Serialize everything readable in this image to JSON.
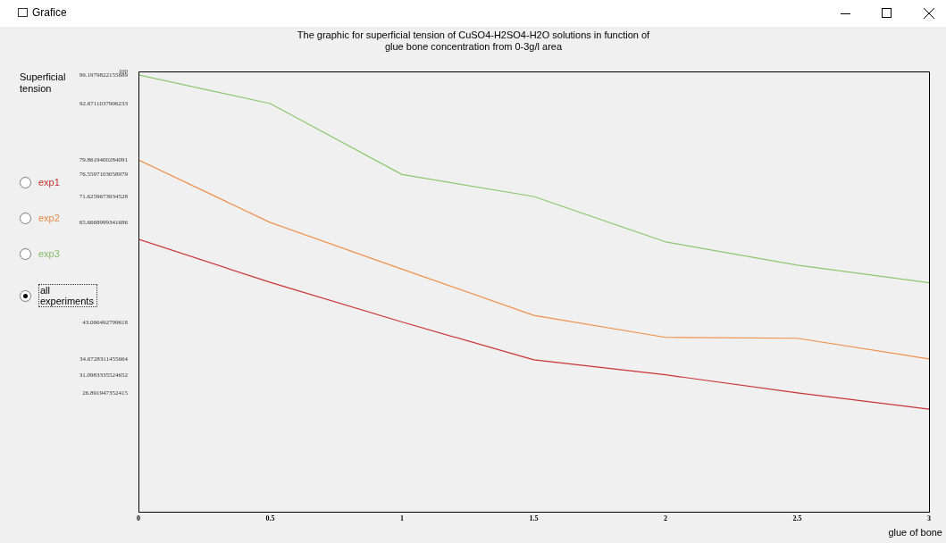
{
  "chart_data": {
    "type": "line",
    "title": "The graphic for superficial tension of CuSO4-H2SO4-H2O solutions in function of glue bone concentration from 0-3g/l area",
    "ylabel": "Superficial tension",
    "xlabel": "glue of bone",
    "annotations": [
      "Grafice",
      "all experiments"
    ],
    "x": [
      0,
      0.5,
      1,
      1.5,
      2,
      2.5,
      3
    ],
    "xlim": [
      0,
      3
    ],
    "xticks": [
      0,
      0.5,
      1,
      1.5,
      2,
      2.5,
      3
    ],
    "ylim": [
      0,
      100
    ],
    "yticks": [
      100,
      99.1979822155689,
      92.6711037906233,
      79.8619400284091,
      76.5597103058979,
      71.6259673934528,
      65.6668999341686,
      43.066492799618,
      34.6728311455664,
      31.0983335524652,
      26.891947352415
    ],
    "legend": "left",
    "marker": "none",
    "line_style": "solid",
    "series": [
      {
        "name": "exp1",
        "color": "#cc3333",
        "values": [
          61.9,
          52.1,
          43.1,
          34.5,
          31.1,
          27.0,
          23.3
        ]
      },
      {
        "name": "exp2",
        "color": "#f0904a",
        "values": [
          79.9,
          65.7,
          55.1,
          44.6,
          39.6,
          39.4,
          34.7
        ]
      },
      {
        "name": "exp3",
        "color": "#8cc870",
        "values": [
          99.2,
          92.7,
          76.6,
          71.6,
          61.3,
          56.0,
          52.0
        ]
      }
    ]
  }
}
